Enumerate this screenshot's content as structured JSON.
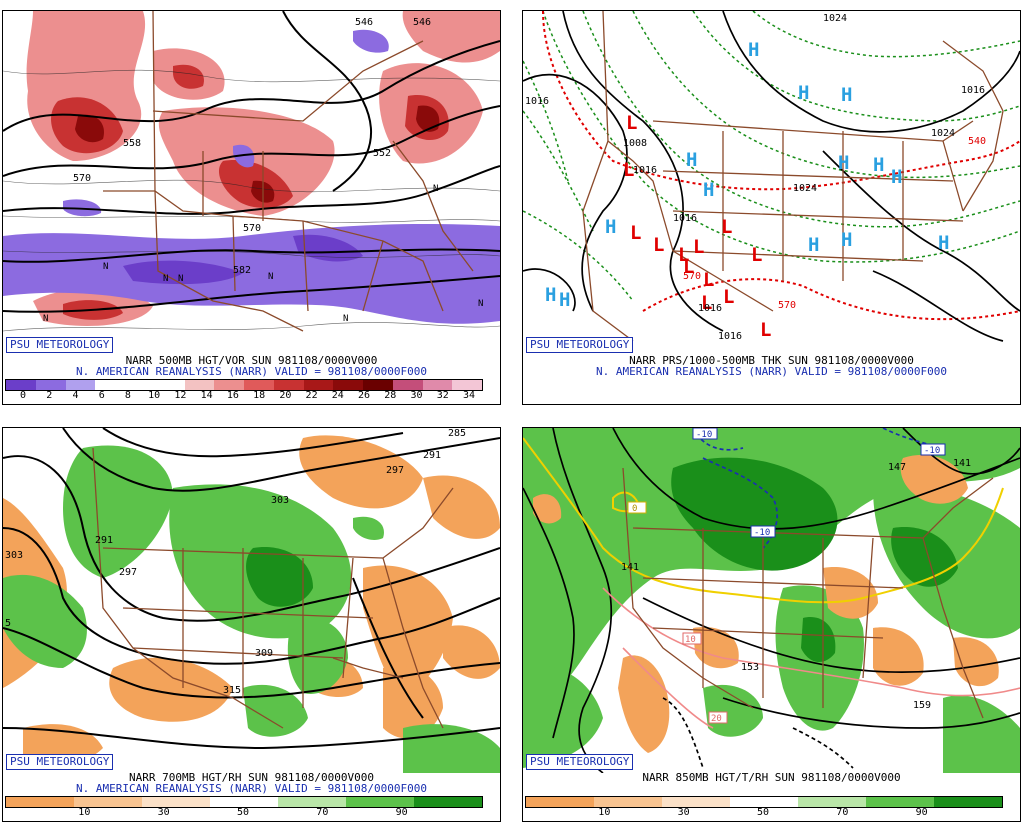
{
  "branding": "PSU METEOROLOGY",
  "panels": [
    {
      "caption_line1": "NARR 500MB HGT/VOR SUN 981108/0000V000",
      "caption_line2": "N. AMERICAN REANALYSIS (NARR) VALID = 981108/0000F000",
      "colorbar_colors": [
        "#6b3ec9",
        "#8c6be0",
        "#b0a0ee",
        "#ffffff",
        "#ffffff",
        "#ffffff",
        "#f3c2c2",
        "#ec8f8f",
        "#e05a5a",
        "#c83232",
        "#a81818",
        "#8a0a0a",
        "#6a0000",
        "#c44e7a",
        "#e08aaa",
        "#f3c6d6"
      ],
      "colorbar_labels": [
        "0",
        "2",
        "4",
        "6",
        "8",
        "10",
        "12",
        "14",
        "16",
        "18",
        "20",
        "22",
        "24",
        "26",
        "28",
        "30",
        "32",
        "34"
      ],
      "contour_labels": [
        "546",
        "546",
        "558",
        "570",
        "552",
        "582",
        "570"
      ]
    },
    {
      "caption_line1": "NARR PRS/1000-500MB THK SUN 981108/0000V000",
      "caption_line2": "N. AMERICAN REANALYSIS (NARR) VALID = 981108/0000F000",
      "contour_labels": [
        "1016",
        "1016",
        "1024",
        "1024",
        "1016",
        "1008",
        "1016",
        "540",
        "1024",
        "570",
        "570",
        "1016",
        "1016"
      ],
      "high_symbol": "H",
      "low_symbol": "L"
    },
    {
      "caption_line1": "NARR 700MB HGT/RH SUN 981108/0000V000",
      "caption_line2": "N. AMERICAN REANALYSIS (NARR) VALID = 981108/0000F000",
      "colorbar_colors": [
        "#f3a35a",
        "#f8c491",
        "#fbe1c8",
        "#ffffff",
        "#b9e6a8",
        "#5cc24a",
        "#1a8f1a"
      ],
      "colorbar_labels": [
        "10",
        "30",
        "50",
        "70",
        "90"
      ],
      "contour_labels": [
        "285",
        "291",
        "297",
        "303",
        "291",
        "297",
        "303",
        "309",
        "315",
        "5"
      ]
    },
    {
      "caption_line1": "NARR 850MB HGT/T/RH SUN 981108/0000V000",
      "caption_line2": "",
      "colorbar_colors": [
        "#f3a35a",
        "#f8c491",
        "#fbe1c8",
        "#ffffff",
        "#b9e6a8",
        "#5cc24a",
        "#1a8f1a"
      ],
      "colorbar_labels": [
        "10",
        "30",
        "50",
        "70",
        "90"
      ],
      "contour_labels": [
        "147",
        "141",
        "141",
        "153",
        "159"
      ],
      "temp_labels": [
        "-10",
        "-10",
        "-10",
        "0",
        "10",
        "20"
      ]
    }
  ]
}
